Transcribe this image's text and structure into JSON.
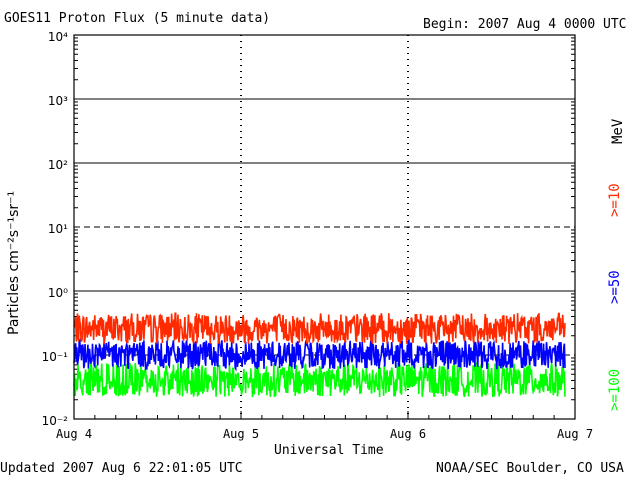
{
  "header": {
    "title": "GOES11 Proton Flux (5 minute data)",
    "begin": "Begin: 2007 Aug 4 0000 UTC"
  },
  "footer": {
    "updated": "Updated 2007 Aug  6 22:01:05 UTC",
    "source": "NOAA/SEC Boulder, CO USA"
  },
  "chart_data": {
    "type": "line",
    "title": "GOES11 Proton Flux (5 minute data)",
    "xlabel": "Universal Time",
    "ylabel": "Particles cm⁻²s⁻¹sr⁻¹",
    "yscale": "log",
    "ylim": [
      0.01,
      10000
    ],
    "xlim": [
      0,
      3
    ],
    "x_ticks": [
      "Aug 4",
      "Aug 5",
      "Aug 6",
      "Aug 7"
    ],
    "y_ticks": [
      "10⁻²",
      "10⁻¹",
      "10⁰",
      "10¹",
      "10²",
      "10³",
      "10⁴"
    ],
    "reference_lines": [
      {
        "y": 10000,
        "style": "solid"
      },
      {
        "y": 1000,
        "style": "solid"
      },
      {
        "y": 100,
        "style": "solid"
      },
      {
        "y": 10,
        "style": "dashed"
      },
      {
        "y": 1,
        "style": "solid"
      },
      {
        "y": 0.1,
        "style": "dashed"
      }
    ],
    "legend_unit": "MeV",
    "series": [
      {
        "name": ">=10",
        "color": "#ff2a00",
        "typical_range": [
          0.15,
          0.45
        ],
        "x_end": 2.94
      },
      {
        "name": ">=50",
        "color": "#0000ff",
        "typical_range": [
          0.06,
          0.17
        ],
        "x_end": 2.94
      },
      {
        "name": ">=100",
        "color": "#00ff00",
        "typical_range": [
          0.022,
          0.075
        ],
        "x_end": 2.94
      }
    ]
  }
}
